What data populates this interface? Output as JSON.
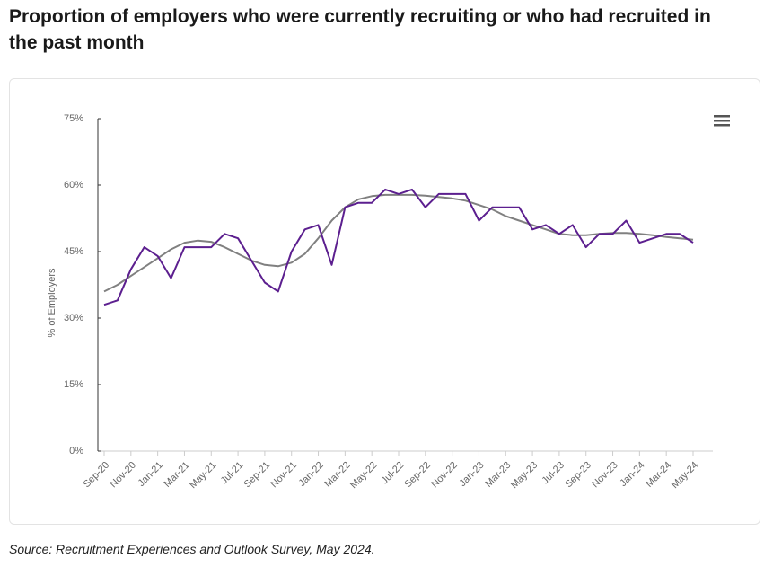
{
  "chart_data": {
    "type": "line",
    "title": "Proportion of employers who were currently recruiting or who had recruited in the past month",
    "ylabel": "% of Employers",
    "source": "Source: Recruitment Experiences and Outlook Survey, May 2024.",
    "categories": [
      "Sep-20",
      null,
      "Nov-20",
      null,
      "Jan-21",
      null,
      "Mar-21",
      null,
      "May-21",
      null,
      "Jul-21",
      null,
      "Sep-21",
      null,
      "Nov-21",
      null,
      "Jan-22",
      null,
      "Mar-22",
      null,
      "May-22",
      null,
      "Jul-22",
      null,
      "Sep-22",
      null,
      "Nov-22",
      null,
      "Jan-23",
      null,
      "Mar-23",
      null,
      "May-23",
      null,
      "Jul-23",
      null,
      "Sep-23",
      null,
      "Nov-23",
      null,
      "Jan-24",
      null,
      "Mar-24",
      null,
      "May-24"
    ],
    "series": [
      {
        "color": "#5c1f8f",
        "values": [
          33,
          34,
          41,
          46,
          44,
          39,
          46,
          46,
          46,
          49,
          48,
          43,
          38,
          36,
          45,
          50,
          51,
          42,
          55,
          56,
          56,
          59,
          58,
          59,
          55,
          58,
          58,
          58,
          52,
          55,
          55,
          55,
          50,
          51,
          49,
          51,
          46,
          49,
          49,
          52,
          47,
          48,
          49,
          49,
          47
        ]
      },
      {
        "color": "#808080",
        "values": [
          36,
          37.5,
          39.5,
          41.5,
          43.5,
          45.5,
          47,
          47.5,
          47.2,
          46,
          44.5,
          43,
          42,
          41.7,
          42.5,
          44.5,
          48,
          52,
          55,
          56.8,
          57.5,
          57.8,
          57.8,
          57.8,
          57.6,
          57.3,
          57,
          56.5,
          55.5,
          54.5,
          53,
          52,
          51,
          50,
          49,
          48.7,
          48.7,
          49,
          49.2,
          49.2,
          49,
          48.7,
          48.3,
          48,
          47.7
        ]
      }
    ],
    "ylim": [
      0,
      75
    ],
    "yticks": [
      {
        "value": 0,
        "label": "0%"
      },
      {
        "value": 15,
        "label": "15%"
      },
      {
        "value": 30,
        "label": "30%"
      },
      {
        "value": 45,
        "label": "45%"
      },
      {
        "value": 60,
        "label": "60%"
      },
      {
        "value": 75,
        "label": "75%"
      }
    ]
  }
}
